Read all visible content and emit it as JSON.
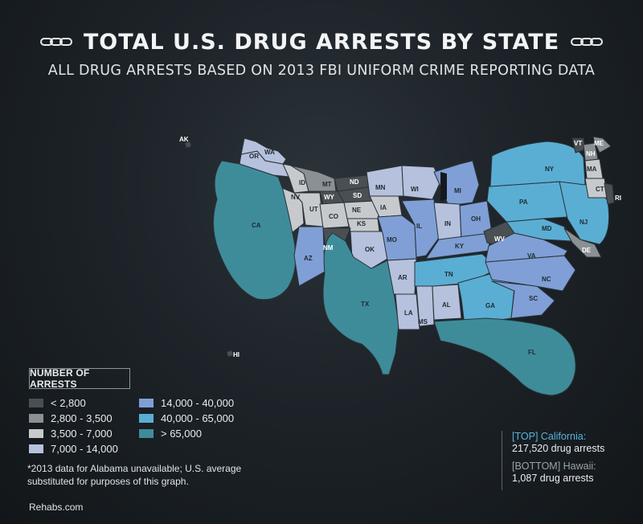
{
  "title": "TOTAL U.S. DRUG ARRESTS BY STATE",
  "subtitle": "ALL DRUG ARRESTS BASED ON 2013 FBI UNIFORM CRIME REPORTING DATA",
  "colors": {
    "c1": "#4a4f53",
    "c2": "#8a9094",
    "c3": "#c7cacc",
    "c4": "#b6c1dd",
    "c5": "#7f9fd6",
    "c6": "#5aaed3",
    "c7": "#3e8c9a",
    "c_label_dark": "#1f2a30"
  },
  "legend": {
    "title": "NUMBER OF ARRESTS",
    "items": [
      {
        "label": "< 2,800",
        "color": "#4a4f53"
      },
      {
        "label": "2,800 - 3,500",
        "color": "#8a9094"
      },
      {
        "label": "3,500 - 7,000",
        "color": "#c7cacc"
      },
      {
        "label": "7,000 - 14,000",
        "color": "#b6c1dd"
      },
      {
        "label": "14,000 - 40,000",
        "color": "#7f9fd6"
      },
      {
        "label": "40,000 - 65,000",
        "color": "#5aaed3"
      },
      {
        "label": "> 65,000",
        "color": "#3e8c9a"
      }
    ]
  },
  "footnote": "*2013 data for Alabama unavailable; U.S. average substituted for purposes of this graph.",
  "source": "Rehabs.com",
  "callout": {
    "top_label": "[TOP] California:",
    "top_value": "217,520 drug arrests",
    "bottom_label": "[BOTTOM] Hawaii:",
    "bottom_value": "1,087 drug arrests"
  },
  "states": {
    "CA": {
      "label": "CA",
      "class": "c7"
    },
    "TX": {
      "label": "TX",
      "class": "c7"
    },
    "FL": {
      "label": "FL",
      "class": "c7"
    },
    "NY": {
      "label": "NY",
      "class": "c6"
    },
    "PA": {
      "label": "PA",
      "class": "c6"
    },
    "NJ": {
      "label": "NJ",
      "class": "c6"
    },
    "TN": {
      "label": "TN",
      "class": "c6"
    },
    "GA": {
      "label": "GA",
      "class": "c6"
    },
    "MD": {
      "label": "MD",
      "class": "c6"
    },
    "AZ": {
      "label": "AZ",
      "class": "c5"
    },
    "MO": {
      "label": "MO",
      "class": "c5"
    },
    "IL": {
      "label": "IL",
      "class": "c5"
    },
    "MI": {
      "label": "MI",
      "class": "c5"
    },
    "OH": {
      "label": "OH",
      "class": "c5"
    },
    "VA": {
      "label": "VA",
      "class": "c5"
    },
    "NC": {
      "label": "NC",
      "class": "c5"
    },
    "SC": {
      "label": "SC",
      "class": "c5"
    },
    "KY": {
      "label": "KY",
      "class": "c5"
    },
    "WA": {
      "label": "WA",
      "class": "c4"
    },
    "OR": {
      "label": "OR",
      "class": "c4"
    },
    "MN": {
      "label": "MN",
      "class": "c4"
    },
    "WI": {
      "label": "WI",
      "class": "c4"
    },
    "IN": {
      "label": "IN",
      "class": "c4"
    },
    "OK": {
      "label": "OK",
      "class": "c4"
    },
    "AR": {
      "label": "AR",
      "class": "c4"
    },
    "LA": {
      "label": "LA",
      "class": "c4"
    },
    "MS": {
      "label": "MS",
      "class": "c4"
    },
    "AL": {
      "label": "AL",
      "class": "c4"
    },
    "CO": {
      "label": "CO",
      "class": "c3"
    },
    "UT": {
      "label": "UT",
      "class": "c3"
    },
    "NV": {
      "label": "NV",
      "class": "c3"
    },
    "ID": {
      "label": "ID",
      "class": "c3"
    },
    "NE": {
      "label": "NE",
      "class": "c3"
    },
    "KS": {
      "label": "KS",
      "class": "c3"
    },
    "IA": {
      "label": "IA",
      "class": "c3"
    },
    "CT": {
      "label": "CT",
      "class": "c3"
    },
    "MA": {
      "label": "MA",
      "class": "c3"
    },
    "MT": {
      "label": "MT",
      "class": "c2"
    },
    "NH": {
      "label": "NH",
      "class": "c2"
    },
    "ME": {
      "label": "ME",
      "class": "c2"
    },
    "DE": {
      "label": "DE",
      "class": "c2"
    },
    "WY": {
      "label": "WY",
      "class": "c1"
    },
    "ND": {
      "label": "ND",
      "class": "c1"
    },
    "SD": {
      "label": "SD",
      "class": "c1"
    },
    "NM": {
      "label": "NM",
      "class": "c1"
    },
    "WV": {
      "label": "WV",
      "class": "c1"
    },
    "VT": {
      "label": "VT",
      "class": "c1"
    },
    "RI": {
      "label": "RI",
      "class": "c1"
    },
    "AK": {
      "label": "AK",
      "class": "c1"
    },
    "HI": {
      "label": "HI",
      "class": "c1"
    }
  }
}
